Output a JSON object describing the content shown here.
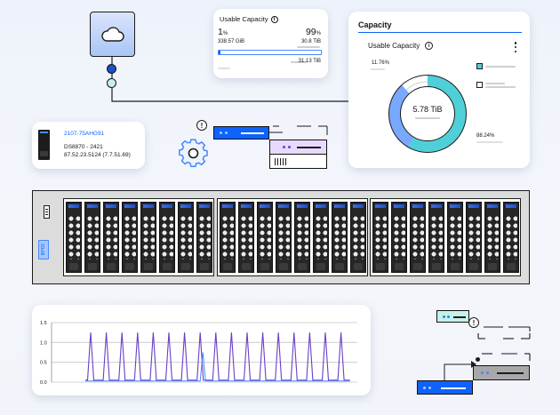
{
  "colors": {
    "accent": "#0f62fe",
    "teal": "#4fd0d8",
    "blue_segment": "#78a9ff",
    "line_purple": "#6a3fc6",
    "line_blue": "#4589ff"
  },
  "icons": [
    "cloud-icon",
    "info-icon",
    "gear-icon",
    "kebab-menu-icon",
    "storage-drive-icon",
    "server-icon"
  ],
  "usable_card": {
    "title": "Usable Capacity",
    "left_pct": "1",
    "left_unit": "%",
    "left_value": "338.57",
    "left_value_unit": "GiB",
    "right_pct": "99",
    "right_unit": "%",
    "right_value": "30.8",
    "right_value_unit": "TiB",
    "total_value": "31.13",
    "total_unit": "TiB",
    "bar_fraction": 0.01
  },
  "device": {
    "id": "2107-75AHG91",
    "model": "DS8870 - 2421",
    "version": "87.52.23.5124 (7.7.51.69)"
  },
  "capacity": {
    "title": "Capacity",
    "subtitle": "Usable Capacity",
    "center_value": "5.78 TiB",
    "used_label": "11.76%",
    "free_label": "88.24%"
  },
  "enclosure": {
    "badge": "BP02",
    "groups": [
      8,
      8,
      8
    ]
  },
  "chart_data": {
    "type": "line",
    "ylim": [
      0,
      1.5
    ],
    "y_ticks": [
      "1.5",
      "1.0",
      "0.5",
      "0.0"
    ],
    "grid": true,
    "peak_count": 17,
    "series": [
      {
        "peak": 1.25,
        "baseline": 0.05
      },
      {
        "peak": 0.75,
        "baseline": 0.05,
        "peak_index": 7
      }
    ]
  }
}
